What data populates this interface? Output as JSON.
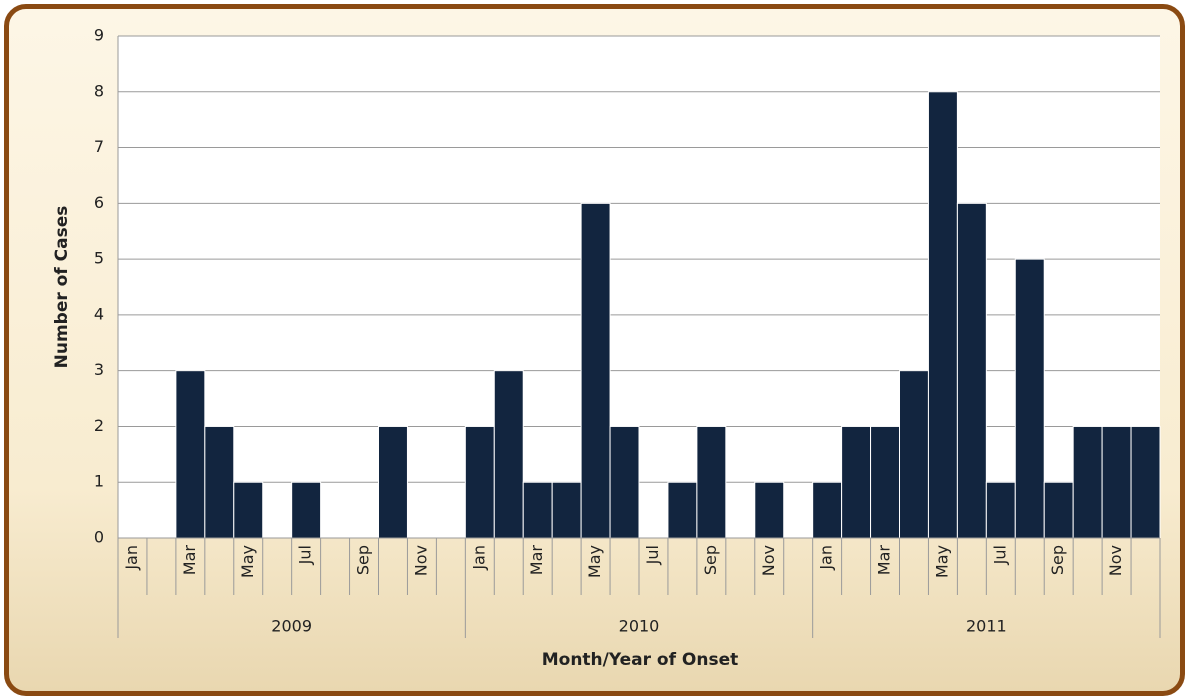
{
  "chart_data": {
    "type": "bar",
    "y_label": "Number of Cases",
    "x_label": "Month/Year of Onset",
    "categories": [
      "Jan",
      null,
      "Mar",
      null,
      "May",
      null,
      "Jul",
      null,
      "Sep",
      null,
      "Nov",
      null,
      "Jan",
      null,
      "Mar",
      null,
      "May",
      null,
      "Jul",
      null,
      "Sep",
      null,
      "Nov",
      null,
      "Jan",
      null,
      "Mar",
      null,
      "May",
      null,
      "Jul",
      null,
      "Sep",
      null,
      "Nov",
      null
    ],
    "groups": [
      "2009",
      "2010",
      "2011"
    ],
    "values": [
      0,
      0,
      3,
      2,
      1,
      0,
      1,
      0,
      0,
      2,
      0,
      0,
      2,
      3,
      1,
      1,
      6,
      2,
      0,
      1,
      2,
      0,
      1,
      0,
      1,
      2,
      2,
      3,
      8,
      6,
      1,
      5,
      1,
      2,
      2,
      2
    ],
    "color": "#12253f",
    "ylim": [
      0,
      9
    ],
    "yticks": [
      0,
      1,
      2,
      3,
      4,
      5,
      6,
      7,
      8,
      9
    ],
    "grid": true
  }
}
